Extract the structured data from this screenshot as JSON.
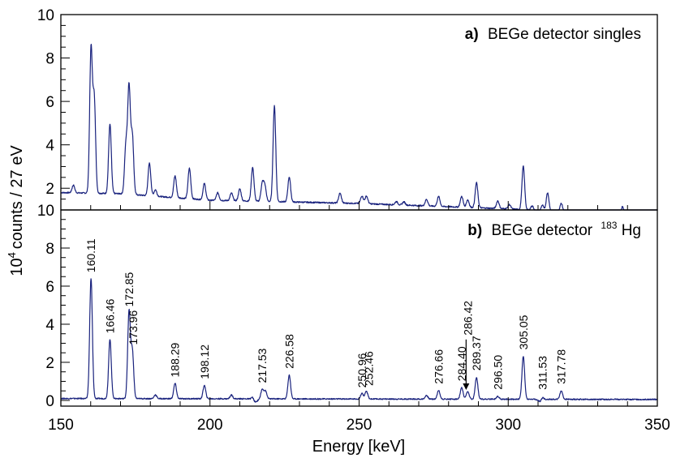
{
  "chart_data": [
    {
      "type": "line",
      "panel": "a",
      "panel_letter": "a)",
      "title": "BEGe detector singles",
      "xlim": [
        150,
        350
      ],
      "ylim": [
        1,
        10
      ],
      "y_ticks": [
        2,
        4,
        6,
        8,
        10
      ],
      "y_tick_labels": [
        "2",
        "4",
        "6",
        "8",
        "10"
      ],
      "baseline": [
        [
          150,
          1.8
        ],
        [
          170,
          1.75
        ],
        [
          200,
          1.45
        ],
        [
          250,
          1.3
        ],
        [
          300,
          1.05
        ],
        [
          350,
          0.65
        ]
      ],
      "peaks": [
        {
          "x": 154.2,
          "y": 0.35
        },
        {
          "x": 160.11,
          "y": 6.6
        },
        {
          "x": 161.2,
          "y": 4.3
        },
        {
          "x": 166.46,
          "y": 3.2
        },
        {
          "x": 171.8,
          "y": 2.2
        },
        {
          "x": 172.85,
          "y": 4.9
        },
        {
          "x": 173.96,
          "y": 2.7
        },
        {
          "x": 179.7,
          "y": 1.5
        },
        {
          "x": 181.7,
          "y": 0.3
        },
        {
          "x": 188.29,
          "y": 1.0
        },
        {
          "x": 193.1,
          "y": 1.4
        },
        {
          "x": 198.12,
          "y": 0.75
        },
        {
          "x": 202.6,
          "y": 0.35
        },
        {
          "x": 207.2,
          "y": 0.35
        },
        {
          "x": 210.0,
          "y": 0.55
        },
        {
          "x": 214.3,
          "y": 1.55
        },
        {
          "x": 217.53,
          "y": 0.8
        },
        {
          "x": 218.4,
          "y": 0.7
        },
        {
          "x": 221.6,
          "y": 4.4
        },
        {
          "x": 226.58,
          "y": 1.15
        },
        {
          "x": 243.6,
          "y": 0.45
        },
        {
          "x": 250.96,
          "y": 0.35
        },
        {
          "x": 252.46,
          "y": 0.35
        },
        {
          "x": 262.5,
          "y": 0.15
        },
        {
          "x": 265.0,
          "y": 0.15
        },
        {
          "x": 272.6,
          "y": 0.3
        },
        {
          "x": 276.66,
          "y": 0.45
        },
        {
          "x": 284.4,
          "y": 0.5
        },
        {
          "x": 286.42,
          "y": 0.35
        },
        {
          "x": 289.37,
          "y": 1.15
        },
        {
          "x": 296.5,
          "y": 0.35
        },
        {
          "x": 300.4,
          "y": 0.2
        },
        {
          "x": 305.05,
          "y": 2.0
        },
        {
          "x": 308.0,
          "y": 0.2
        },
        {
          "x": 311.53,
          "y": 0.25
        },
        {
          "x": 313.2,
          "y": 0.85
        },
        {
          "x": 317.78,
          "y": 0.4
        },
        {
          "x": 329.0,
          "y": 0.15
        },
        {
          "x": 338.3,
          "y": 0.4
        }
      ]
    },
    {
      "type": "line",
      "panel": "b",
      "panel_letter": "b)",
      "title_prefix": "BEGe detector",
      "title_mass": "183",
      "title_element": "Hg",
      "xlabel": "Energy [keV]",
      "ylabel_base": "10",
      "ylabel_exp": "4",
      "ylabel_rest": "counts / 27 eV",
      "xlim": [
        150,
        350
      ],
      "ylim": [
        -0.3,
        10
      ],
      "x_ticks": [
        150,
        200,
        250,
        300,
        350
      ],
      "x_tick_labels": [
        "150",
        "200",
        "250",
        "300",
        "350"
      ],
      "y_ticks": [
        0,
        2,
        4,
        6,
        8,
        10
      ],
      "y_tick_labels": [
        "0",
        "2",
        "4",
        "6",
        "8",
        "10"
      ],
      "baseline": [
        [
          150,
          0.1
        ],
        [
          350,
          0.05
        ]
      ],
      "peaks": [
        {
          "x": 160.11,
          "y": 6.3
        },
        {
          "x": 166.46,
          "y": 3.1
        },
        {
          "x": 172.85,
          "y": 4.55
        },
        {
          "x": 173.96,
          "y": 2.5
        },
        {
          "x": 181.7,
          "y": 0.2
        },
        {
          "x": 188.29,
          "y": 0.8
        },
        {
          "x": 198.12,
          "y": 0.7
        },
        {
          "x": 207.2,
          "y": 0.2
        },
        {
          "x": 214.3,
          "y": 0.2
        },
        {
          "x": 217.53,
          "y": 0.5
        },
        {
          "x": 218.6,
          "y": 0.4
        },
        {
          "x": 226.58,
          "y": 1.25
        },
        {
          "x": 250.96,
          "y": 0.3
        },
        {
          "x": 252.46,
          "y": 0.4
        },
        {
          "x": 272.6,
          "y": 0.2
        },
        {
          "x": 276.66,
          "y": 0.45
        },
        {
          "x": 284.4,
          "y": 0.6
        },
        {
          "x": 286.42,
          "y": 0.4
        },
        {
          "x": 289.37,
          "y": 1.15
        },
        {
          "x": 296.5,
          "y": 0.15
        },
        {
          "x": 305.05,
          "y": 2.25
        },
        {
          "x": 311.53,
          "y": 0.2
        },
        {
          "x": 317.78,
          "y": 0.45
        }
      ],
      "dips": [
        {
          "x": 215.0,
          "y": -0.2
        },
        {
          "x": 311.0,
          "y": -0.15
        }
      ],
      "peak_labels": [
        {
          "text": "160.11",
          "x": 160.11,
          "y": 6.5
        },
        {
          "text": "166.46",
          "x": 166.46,
          "y": 3.3
        },
        {
          "text": "172.85",
          "x": 172.85,
          "y": 4.7
        },
        {
          "text": "173.96",
          "x": 174.2,
          "y": 2.7
        },
        {
          "text": "188.29",
          "x": 188.29,
          "y": 1.0
        },
        {
          "text": "198.12",
          "x": 198.12,
          "y": 0.9
        },
        {
          "text": "217.53",
          "x": 217.53,
          "y": 0.7
        },
        {
          "text": "226.58",
          "x": 226.58,
          "y": 1.45
        },
        {
          "text": "250.96",
          "x": 250.96,
          "y": 0.45
        },
        {
          "text": "252.46",
          "x": 253.2,
          "y": 0.55
        },
        {
          "text": "276.66",
          "x": 276.66,
          "y": 0.65
        },
        {
          "text": "284.40",
          "x": 284.4,
          "y": 0.8
        },
        {
          "text": "286.42",
          "x": 286.42,
          "y": 3.2
        },
        {
          "text": "289.37",
          "x": 289.37,
          "y": 1.35
        },
        {
          "text": "296.50",
          "x": 296.5,
          "y": 0.35
        },
        {
          "text": "305.05",
          "x": 305.05,
          "y": 2.45
        },
        {
          "text": "311.53",
          "x": 311.53,
          "y": 0.35
        },
        {
          "text": "317.78",
          "x": 317.78,
          "y": 0.65
        }
      ],
      "arrow": {
        "label": "286.42",
        "x": 286.42,
        "from_y": 3.2,
        "to_y": 0.55
      }
    }
  ],
  "colors": {
    "series": "#1a237e",
    "axes": "#000000"
  }
}
